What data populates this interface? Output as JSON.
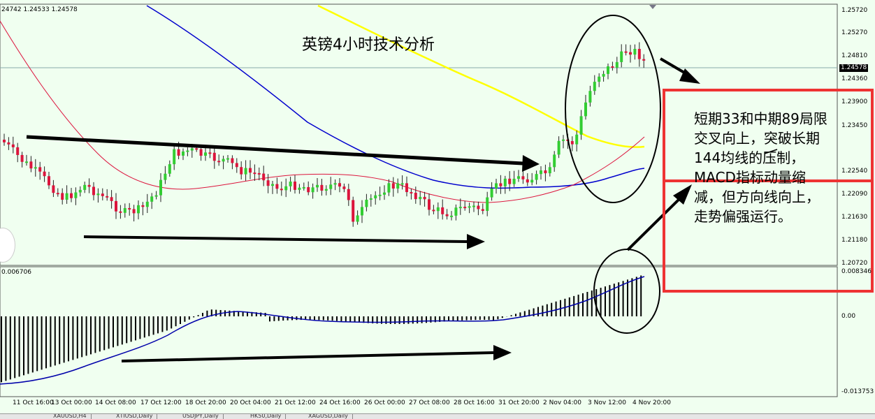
{
  "header": {
    "ohlc": "24742 1.24533 1.24578",
    "title": "英镑4小时技术分析"
  },
  "price_axis": {
    "labels": [
      "1.25720",
      "1.25270",
      "1.24810",
      "1.24360",
      "1.23900",
      "1.23450",
      "1.22540",
      "1.22090",
      "1.21630",
      "1.21180",
      "1.20720"
    ],
    "current_price": "1.24578"
  },
  "macd_axis": {
    "labels": [
      "0.008346",
      "0.00",
      "-0.013753"
    ],
    "indicator_value": "0.006706"
  },
  "time_axis": {
    "labels": [
      "11 Oct 16:00",
      "13 Oct 00:00",
      "14 Oct 08:00",
      "17 Oct 12:00",
      "18 Oct 20:00",
      "20 Oct 04:00",
      "21 Oct 12:00",
      "24 Oct 16:00",
      "26 Oct 00:00",
      "27 Oct 08:00",
      "28 Oct 16:00",
      "31 Oct 20:00",
      "2 Nov 04:00",
      "3 Nov 12:00",
      "4 Nov 20:00"
    ]
  },
  "annotation": {
    "line1": "短期33和中期89局限",
    "line2": "交叉向上，突破长期",
    "line3": "144均线的压制，",
    "line4": "MACD指标动量缩",
    "line5": "减，但方向线向上，",
    "line6": "走势偏强运行。"
  },
  "tabs": [
    "XAUUSD,H4",
    "XTIUSD,Daily",
    "USDJPY,Daily",
    "HK50,Daily",
    "XAGUSD,Daily"
  ],
  "colors": {
    "background": "#f0fff0",
    "bull_candle": "#32cd32",
    "bear_candle": "#dc143c",
    "ma_short": "#dc143c",
    "ma_mid": "#0000cd",
    "ma_long": "#ffff00",
    "annotation_box": "#ee3333"
  }
}
